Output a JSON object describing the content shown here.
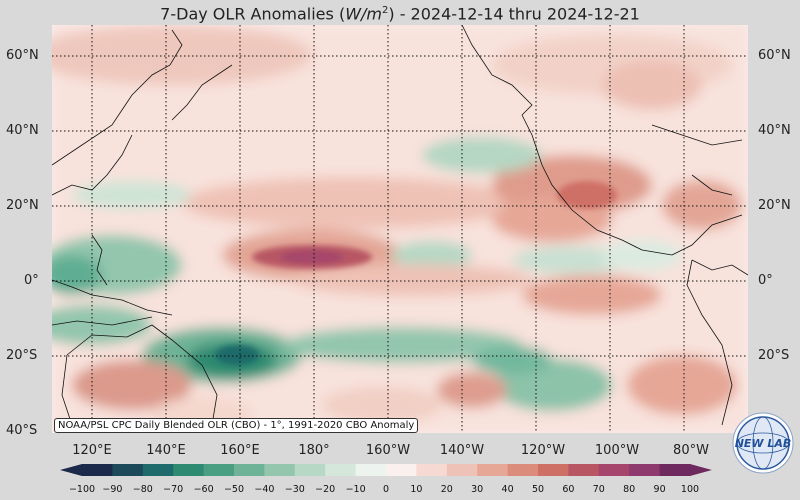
{
  "title": {
    "prefix": "7-Day OLR Anomalies (",
    "unit_var": "W/m",
    "unit_exp": "2",
    "suffix": ") - 2024-12-14 thru 2024-12-21"
  },
  "map": {
    "latitude_labels": [
      "60°N",
      "40°N",
      "20°N",
      "0°",
      "20°S",
      "40°S"
    ],
    "longitude_labels": [
      "120°E",
      "140°E",
      "160°E",
      "180°",
      "160°W",
      "140°W",
      "120°W",
      "100°W",
      "80°W"
    ],
    "attribution": "NOAA/PSL CPC Daily Blended OLR (CBO) - 1°, 1991-2020 CBO Anomaly",
    "anomaly_regions": [
      {
        "name": "central-pacific-positive",
        "value": 70,
        "color": "#a6466c"
      },
      {
        "name": "equatorial-pacific-positive",
        "value": 35,
        "color": "#d98a80"
      },
      {
        "name": "mexico-positive",
        "value": 35,
        "color": "#d68376"
      },
      {
        "name": "us-southeast-positive",
        "value": 25,
        "color": "#e3a696"
      },
      {
        "name": "north-pacific-positive",
        "value": 15,
        "color": "#efc2b6"
      },
      {
        "name": "coral-sea-negative",
        "value": -55,
        "color": "#2e8a70"
      },
      {
        "name": "maritime-continent-negative",
        "value": -35,
        "color": "#5fae93"
      },
      {
        "name": "south-pacific-negative",
        "value": -30,
        "color": "#72b89e"
      },
      {
        "name": "north-pacific-negative",
        "value": -25,
        "color": "#9dcab4"
      },
      {
        "name": "australia-positive",
        "value": 30,
        "color": "#dc9a8c"
      },
      {
        "name": "south-pacific-positive",
        "value": 30,
        "color": "#de9d8e"
      }
    ]
  },
  "colorbar": {
    "ticks": [
      "−100",
      "−90",
      "−80",
      "−70",
      "−60",
      "−50",
      "−40",
      "−30",
      "−20",
      "−10",
      "0",
      "10",
      "20",
      "30",
      "40",
      "50",
      "60",
      "70",
      "80",
      "90",
      "100"
    ],
    "colors": [
      "#1b2a4a",
      "#1d4a5a",
      "#1f6a6a",
      "#2e8a70",
      "#4a9e82",
      "#6eb397",
      "#93c6ad",
      "#b6d8c4",
      "#d4e7da",
      "#edf3ef",
      "#faf0ee",
      "#f5d9d2",
      "#eec2b6",
      "#e6a797",
      "#dc8c7b",
      "#cf7066",
      "#b85663",
      "#a6466c",
      "#8e3a6e",
      "#6e2a5e"
    ]
  },
  "logo": {
    "text": "NEW LAB"
  }
}
